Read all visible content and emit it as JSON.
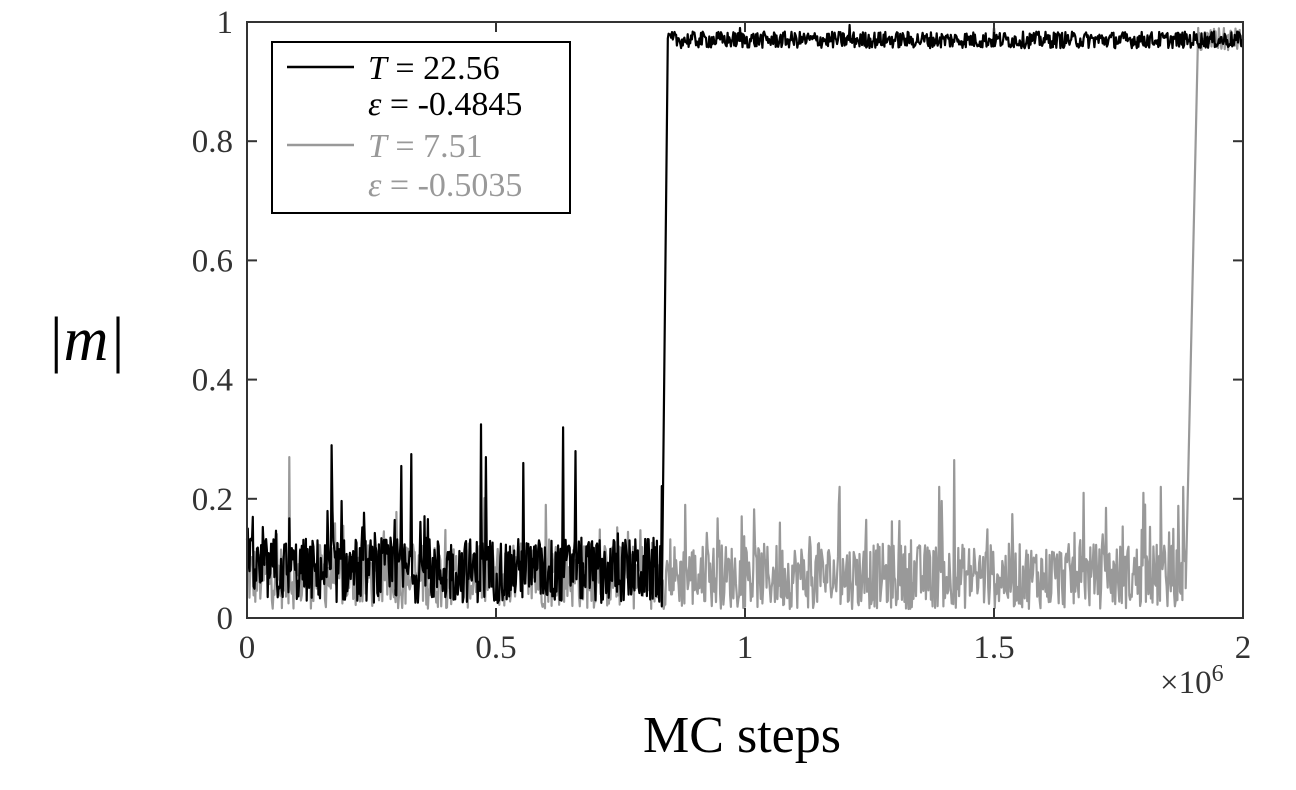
{
  "chart_data": {
    "type": "line",
    "title": "",
    "xlabel": "MC steps",
    "ylabel": "|m|",
    "x_multiplier": "×10",
    "x_multiplier_exp": "6",
    "xlim": [
      0,
      2
    ],
    "ylim": [
      0,
      1
    ],
    "x_ticks": [
      0,
      0.5,
      1,
      1.5,
      2
    ],
    "x_tick_labels": [
      "0",
      "0.5",
      "1",
      "1.5",
      "2"
    ],
    "y_ticks": [
      0,
      0.2,
      0.4,
      0.6,
      0.8,
      1
    ],
    "y_tick_labels": [
      "0",
      "0.2",
      "0.4",
      "0.6",
      "0.8",
      "1"
    ],
    "grid": false,
    "legend_position": "top-left",
    "legend": [
      {
        "line1_sym": "T",
        "line1_val": " = 22.56",
        "line2_sym": "ε",
        "line2_val": " = -0.4845",
        "color": "#000000"
      },
      {
        "line1_sym": "T",
        "line1_val": " = 7.51",
        "line2_sym": "ε",
        "line2_val": " = -0.5035",
        "color": "#999999"
      }
    ],
    "series": [
      {
        "color": "#999999",
        "segments": [
          {
            "x_start": 0,
            "x_end": 1.885,
            "mean": 0.07,
            "spread": 0.055,
            "peaks": [
              [
                0.085,
                0.27
              ],
              [
                0.6,
                0.19
              ],
              [
                0.88,
                0.19
              ],
              [
                1.07,
                0.16
              ],
              [
                1.19,
                0.22
              ],
              [
                1.39,
                0.22
              ],
              [
                1.42,
                0.265
              ],
              [
                1.68,
                0.21
              ],
              [
                1.8,
                0.21
              ],
              [
                1.835,
                0.22
              ],
              [
                1.88,
                0.22
              ]
            ]
          },
          {
            "x_start": 1.885,
            "x_end": 1.91,
            "from": 0.05,
            "to": 0.99
          },
          {
            "x_start": 1.91,
            "x_end": 2.0,
            "mean": 0.97,
            "spread": 0.02,
            "peaks": []
          }
        ]
      },
      {
        "color": "#000000",
        "segments": [
          {
            "x_start": 0,
            "x_end": 0.833,
            "mean": 0.08,
            "spread": 0.055,
            "peaks": [
              [
                0.17,
                0.29
              ],
              [
                0.31,
                0.255
              ],
              [
                0.33,
                0.275
              ],
              [
                0.47,
                0.325
              ],
              [
                0.48,
                0.27
              ],
              [
                0.555,
                0.26
              ],
              [
                0.635,
                0.32
              ],
              [
                0.66,
                0.28
              ]
            ]
          },
          {
            "x_start": 0.833,
            "x_end": 0.845,
            "from": 0.02,
            "to": 0.97
          },
          {
            "x_start": 0.845,
            "x_end": 2.0,
            "mean": 0.97,
            "spread": 0.014,
            "peaks": [
              [
                0.99,
                0.99
              ],
              [
                1.21,
                0.995
              ],
              [
                1.5,
                0.99
              ]
            ]
          }
        ]
      }
    ]
  }
}
